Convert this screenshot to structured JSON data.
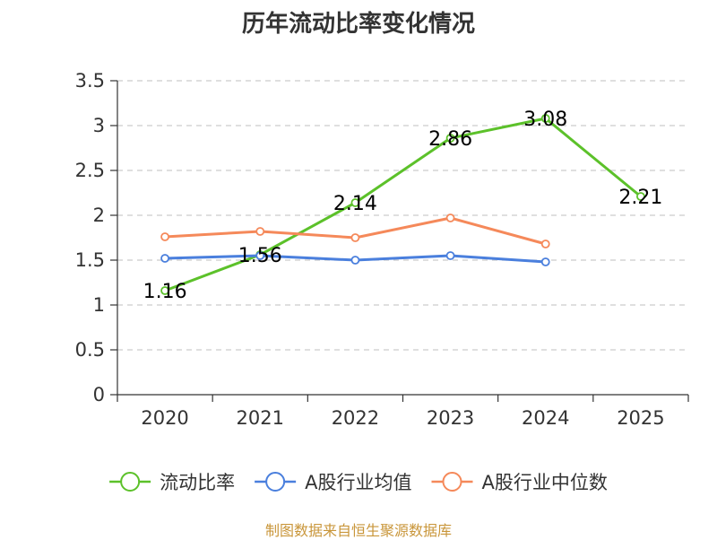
{
  "chart_data": {
    "type": "line",
    "title": "历年流动比率变化情况",
    "categories": [
      "2020",
      "2021",
      "2022",
      "2023",
      "2024",
      "2025"
    ],
    "ylim": [
      0,
      3.5
    ],
    "yticks": [
      "0",
      "0.5",
      "1",
      "1.5",
      "2",
      "2.5",
      "3",
      "3.5"
    ],
    "grid": true,
    "legend_position": "bottom",
    "series": [
      {
        "name": "流动比率",
        "color": "#5cc12a",
        "values": [
          1.16,
          1.56,
          2.14,
          2.86,
          3.08,
          2.21
        ],
        "labels": [
          "1.16",
          "1.56",
          "2.14",
          "2.86",
          "3.08",
          "2.21"
        ],
        "show_labels": true
      },
      {
        "name": "A股行业均值",
        "color": "#4a7fdd",
        "values": [
          1.52,
          1.55,
          1.5,
          1.55,
          1.48,
          null
        ],
        "show_labels": false
      },
      {
        "name": "A股行业中位数",
        "color": "#f5895a",
        "values": [
          1.76,
          1.82,
          1.75,
          1.97,
          1.68,
          null
        ],
        "show_labels": false
      }
    ],
    "source": "制图数据来自恒生聚源数据库"
  }
}
